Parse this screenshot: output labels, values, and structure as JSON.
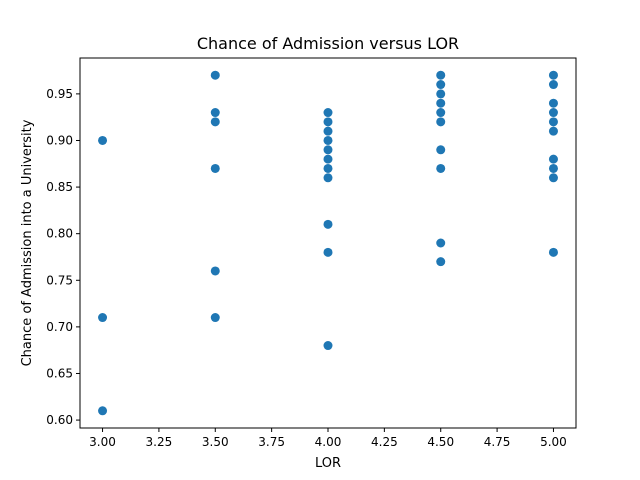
{
  "chart_data": {
    "type": "scatter",
    "title": "Chance of Admission versus LOR",
    "xlabel": "LOR",
    "ylabel": "Chance of Admission into a University",
    "xlim": [
      2.9,
      5.1
    ],
    "ylim": [
      0.5915,
      0.9885
    ],
    "x_ticks": [
      3.0,
      3.25,
      3.5,
      3.75,
      4.0,
      4.25,
      4.5,
      4.75,
      5.0
    ],
    "x_tick_labels": [
      "3.00",
      "3.25",
      "3.50",
      "3.75",
      "4.00",
      "4.25",
      "4.50",
      "4.75",
      "5.00"
    ],
    "y_ticks": [
      0.6,
      0.65,
      0.7,
      0.75,
      0.8,
      0.85,
      0.9,
      0.95
    ],
    "y_tick_labels": [
      "0.60",
      "0.65",
      "0.70",
      "0.75",
      "0.80",
      "0.85",
      "0.90",
      "0.95"
    ],
    "grid": false,
    "marker_color": "#1f77b4",
    "points": [
      {
        "x": 3.0,
        "y": 0.9
      },
      {
        "x": 3.0,
        "y": 0.71
      },
      {
        "x": 3.0,
        "y": 0.61
      },
      {
        "x": 3.5,
        "y": 0.97
      },
      {
        "x": 3.5,
        "y": 0.93
      },
      {
        "x": 3.5,
        "y": 0.92
      },
      {
        "x": 3.5,
        "y": 0.87
      },
      {
        "x": 3.5,
        "y": 0.76
      },
      {
        "x": 3.5,
        "y": 0.71
      },
      {
        "x": 4.0,
        "y": 0.93
      },
      {
        "x": 4.0,
        "y": 0.92
      },
      {
        "x": 4.0,
        "y": 0.91
      },
      {
        "x": 4.0,
        "y": 0.9
      },
      {
        "x": 4.0,
        "y": 0.89
      },
      {
        "x": 4.0,
        "y": 0.88
      },
      {
        "x": 4.0,
        "y": 0.87
      },
      {
        "x": 4.0,
        "y": 0.86
      },
      {
        "x": 4.0,
        "y": 0.81
      },
      {
        "x": 4.0,
        "y": 0.78
      },
      {
        "x": 4.0,
        "y": 0.68
      },
      {
        "x": 4.5,
        "y": 0.97
      },
      {
        "x": 4.5,
        "y": 0.96
      },
      {
        "x": 4.5,
        "y": 0.95
      },
      {
        "x": 4.5,
        "y": 0.94
      },
      {
        "x": 4.5,
        "y": 0.93
      },
      {
        "x": 4.5,
        "y": 0.92
      },
      {
        "x": 4.5,
        "y": 0.89
      },
      {
        "x": 4.5,
        "y": 0.87
      },
      {
        "x": 4.5,
        "y": 0.79
      },
      {
        "x": 4.5,
        "y": 0.77
      },
      {
        "x": 5.0,
        "y": 0.97
      },
      {
        "x": 5.0,
        "y": 0.96
      },
      {
        "x": 5.0,
        "y": 0.94
      },
      {
        "x": 5.0,
        "y": 0.93
      },
      {
        "x": 5.0,
        "y": 0.92
      },
      {
        "x": 5.0,
        "y": 0.91
      },
      {
        "x": 5.0,
        "y": 0.88
      },
      {
        "x": 5.0,
        "y": 0.87
      },
      {
        "x": 5.0,
        "y": 0.86
      },
      {
        "x": 5.0,
        "y": 0.78
      }
    ]
  }
}
